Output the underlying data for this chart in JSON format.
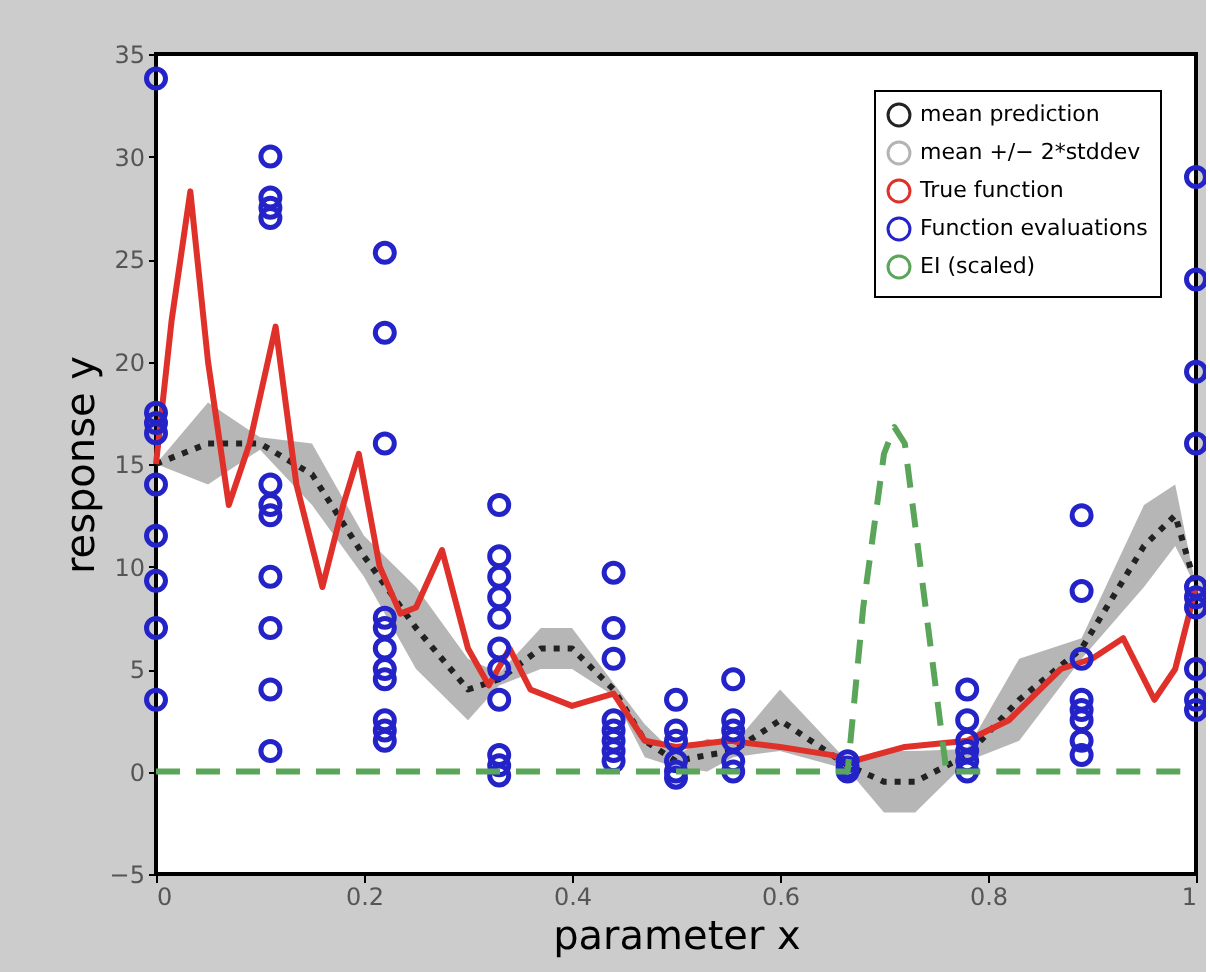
{
  "chart_data": {
    "type": "line",
    "xlabel": "parameter x",
    "ylabel": "response y",
    "xlim": [
      0,
      1
    ],
    "xticks": [
      0,
      0.2,
      0.4,
      0.6,
      0.8,
      1
    ],
    "ylim": [
      -5,
      35
    ],
    "yticks": [
      -5,
      0,
      5,
      10,
      15,
      20,
      25,
      30,
      35
    ],
    "grid": false,
    "legend": "top right",
    "series": [
      {
        "name": "mean prediction",
        "line_style": "dotted",
        "color": "#222222",
        "x": [
          0,
          0.05,
          0.1,
          0.15,
          0.2,
          0.25,
          0.3,
          0.33,
          0.37,
          0.4,
          0.44,
          0.47,
          0.5,
          0.53,
          0.555,
          0.6,
          0.665,
          0.7,
          0.73,
          0.78,
          0.83,
          0.89,
          0.95,
          0.98,
          1
        ],
        "values": [
          15,
          16,
          16,
          14.5,
          10.5,
          7,
          4,
          4.5,
          6,
          6,
          4,
          1.5,
          0.5,
          0.8,
          1,
          2.5,
          0.3,
          -0.5,
          -0.5,
          0.8,
          3.5,
          6,
          11,
          12.5,
          9
        ],
        "lower": [
          15,
          14,
          15.7,
          13,
          9.5,
          5,
          2.5,
          4.2,
          5,
          5,
          3.7,
          0.7,
          0.2,
          0,
          0.7,
          1,
          0.1,
          -2,
          -2,
          0.5,
          1.5,
          5.5,
          9,
          11,
          9
        ],
        "upper": [
          15,
          18,
          16.3,
          16,
          11.5,
          9,
          5.5,
          4.8,
          7,
          7,
          4.3,
          2.3,
          0.8,
          1.6,
          1.3,
          4,
          0.5,
          1,
          1,
          1.1,
          5.5,
          6.5,
          13,
          14,
          9
        ]
      },
      {
        "name": "mean +/− 2*stddev",
        "type": "area",
        "color": "#b4b4b4"
      },
      {
        "name": "True function",
        "type": "line",
        "line_style": "solid",
        "color": "#e0302a",
        "x": [
          0,
          0.015,
          0.033,
          0.05,
          0.07,
          0.09,
          0.115,
          0.135,
          0.16,
          0.18,
          0.195,
          0.215,
          0.235,
          0.25,
          0.275,
          0.3,
          0.32,
          0.34,
          0.36,
          0.4,
          0.44,
          0.47,
          0.5,
          0.55,
          0.6,
          0.65,
          0.67,
          0.72,
          0.78,
          0.82,
          0.87,
          0.9,
          0.93,
          0.96,
          0.98,
          1
        ],
        "values": [
          15,
          22,
          28.3,
          20,
          13,
          16,
          21.7,
          14,
          9,
          13,
          15.5,
          10,
          7.7,
          8,
          10.8,
          6,
          4.2,
          6,
          4,
          3.2,
          3.8,
          1.5,
          1.2,
          1.5,
          1.2,
          0.8,
          0.5,
          1.2,
          1.5,
          2.5,
          5,
          5.5,
          6.5,
          3.5,
          5,
          9
        ]
      },
      {
        "name": "Function evaluations",
        "type": "scatter",
        "marker": "circle",
        "color": "#2323c8",
        "x": [
          0,
          0,
          0,
          0,
          0,
          0,
          0,
          0,
          0,
          0.11,
          0.11,
          0.11,
          0.11,
          0.11,
          0.11,
          0.11,
          0.11,
          0.11,
          0.11,
          0.11,
          0.22,
          0.22,
          0.22,
          0.22,
          0.22,
          0.22,
          0.22,
          0.22,
          0.22,
          0.22,
          0.22,
          0.33,
          0.33,
          0.33,
          0.33,
          0.33,
          0.33,
          0.33,
          0.33,
          0.33,
          0.33,
          0.33,
          0.44,
          0.44,
          0.44,
          0.44,
          0.44,
          0.44,
          0.44,
          0.44,
          0.5,
          0.5,
          0.5,
          0.5,
          0.5,
          0.5,
          0.555,
          0.555,
          0.555,
          0.555,
          0.555,
          0.555,
          0.665,
          0.665,
          0.665,
          0.78,
          0.78,
          0.78,
          0.78,
          0.78,
          0.78,
          0.89,
          0.89,
          0.89,
          0.89,
          0.89,
          0.89,
          0.89,
          0.89,
          1,
          1,
          1,
          1,
          1,
          1,
          1,
          1,
          1,
          1
        ],
        "values": [
          33.8,
          17.5,
          17,
          16.5,
          14,
          11.5,
          9.3,
          7,
          3.5,
          30,
          28,
          27.5,
          27,
          14,
          13,
          12.5,
          9.5,
          7,
          4,
          1,
          25.3,
          21.4,
          16,
          7.5,
          7,
          6,
          5,
          4.5,
          2.5,
          2,
          1.5,
          13,
          10.5,
          9.5,
          8.5,
          7.5,
          6,
          5,
          3.5,
          0.8,
          0.3,
          -0.2,
          9.7,
          7,
          5.5,
          2.5,
          2,
          1.5,
          1,
          0.5,
          3.5,
          2,
          1.5,
          0.5,
          0,
          -0.3,
          4.5,
          2.5,
          2,
          1.5,
          0.5,
          0,
          0.5,
          0.2,
          0,
          4,
          2.5,
          1.5,
          1,
          0.5,
          0,
          12.5,
          8.8,
          5.5,
          3.5,
          3,
          2.5,
          1.5,
          0.8,
          29,
          24,
          19.5,
          16,
          9,
          8.5,
          8,
          5,
          3.5,
          3
        ]
      },
      {
        "name": "EI (scaled)",
        "type": "line",
        "line_style": "dashed",
        "color": "#5aa55a",
        "x": [
          0,
          0.665,
          0.68,
          0.7,
          0.71,
          0.72,
          0.74,
          0.76,
          1
        ],
        "values": [
          0,
          0,
          8,
          15.5,
          16.8,
          16,
          8,
          0,
          0
        ]
      }
    ]
  }
}
